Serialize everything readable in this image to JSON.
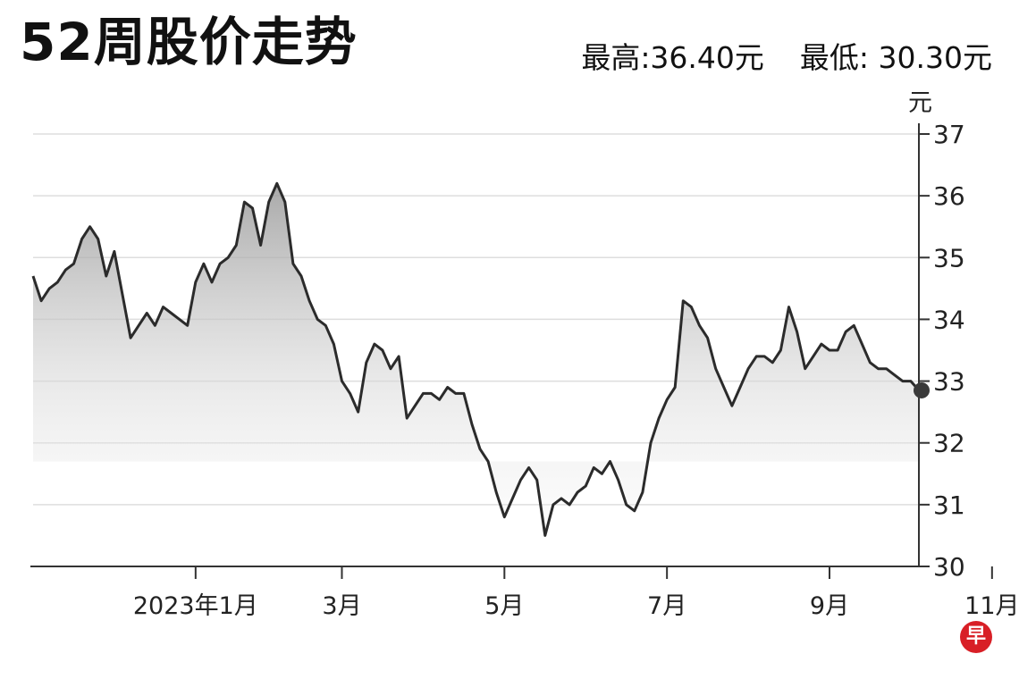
{
  "header": {
    "title": "52周股价走势",
    "high_label": "最高:36.40元",
    "low_label": "最低: 30.30元"
  },
  "logo": {
    "text": "早",
    "color": "#d81f26"
  },
  "chart_data": {
    "type": "line",
    "title": "52周股价走势",
    "ylabel": "元",
    "ylim": [
      30,
      37
    ],
    "yticks": [
      30,
      31,
      32,
      33,
      34,
      35,
      36,
      37
    ],
    "x_tick_labels": [
      "2023年1月",
      "3月",
      "5月",
      "7月",
      "9月",
      "11月"
    ],
    "x_tick_index": [
      20,
      38,
      58,
      78,
      98,
      118
    ],
    "grid": "horizontal",
    "line_color": "#2b2b2b",
    "fill": "gray gradient",
    "last_point_marker": true,
    "series": [
      {
        "values": [
          34.7,
          34.3,
          34.5,
          34.6,
          34.8,
          34.9,
          35.3,
          35.5,
          35.3,
          34.7,
          35.1,
          34.4,
          33.7,
          33.9,
          34.1,
          33.9,
          34.2,
          34.1,
          34.0,
          33.9,
          34.6,
          34.9,
          34.6,
          34.9,
          35.0,
          35.2,
          35.9,
          35.8,
          35.2,
          35.9,
          36.2,
          35.9,
          34.9,
          34.7,
          34.3,
          34.0,
          33.9,
          33.6,
          33.0,
          32.8,
          32.5,
          33.3,
          33.6,
          33.5,
          33.2,
          33.4,
          32.4,
          32.6,
          32.8,
          32.8,
          32.7,
          32.9,
          32.8,
          32.8,
          32.3,
          31.9,
          31.7,
          31.2,
          30.8,
          31.1,
          31.4,
          31.6,
          31.4,
          30.5,
          31.0,
          31.1,
          31.0,
          31.2,
          31.3,
          31.6,
          31.5,
          31.7,
          31.4,
          31.0,
          30.9,
          31.2,
          32.0,
          32.4,
          32.7,
          32.9,
          34.3,
          34.2,
          33.9,
          33.7,
          33.2,
          32.9,
          32.6,
          32.9,
          33.2,
          33.4,
          33.4,
          33.3,
          33.5,
          34.2,
          33.8,
          33.2,
          33.4,
          33.6,
          33.5,
          33.5,
          33.8,
          33.9,
          33.6,
          33.3,
          33.2,
          33.2,
          33.1,
          33.0,
          33.0,
          32.85
        ]
      }
    ]
  }
}
